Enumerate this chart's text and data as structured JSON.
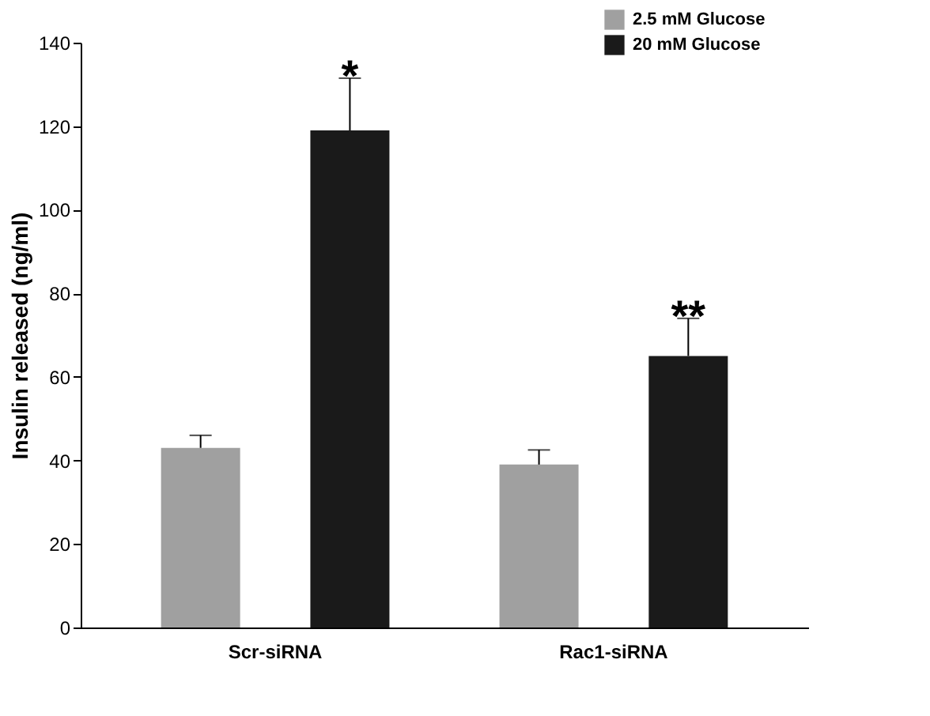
{
  "chart_data": {
    "type": "bar",
    "ylabel": "Insulin released (ng/ml)",
    "categories": [
      "Scr-siRNA",
      "Rac1-siRNA"
    ],
    "series": [
      {
        "name": "2.5 mM Glucose",
        "color": "#a0a0a0",
        "values": [
          43,
          39
        ],
        "errors": [
          [
            43,
            46
          ],
          [
            39,
            42.5
          ]
        ]
      },
      {
        "name": "20 mM Glucose",
        "color": "#1a1a1a",
        "values": [
          119,
          65
        ],
        "errors": [
          [
            119,
            131.5
          ],
          [
            65,
            74
          ]
        ]
      }
    ],
    "ylim": [
      0,
      140
    ],
    "yticks": [
      0,
      20,
      40,
      60,
      80,
      100,
      120,
      140
    ],
    "grid": false,
    "legend": "top right",
    "annotations": [
      "*",
      "**"
    ]
  }
}
